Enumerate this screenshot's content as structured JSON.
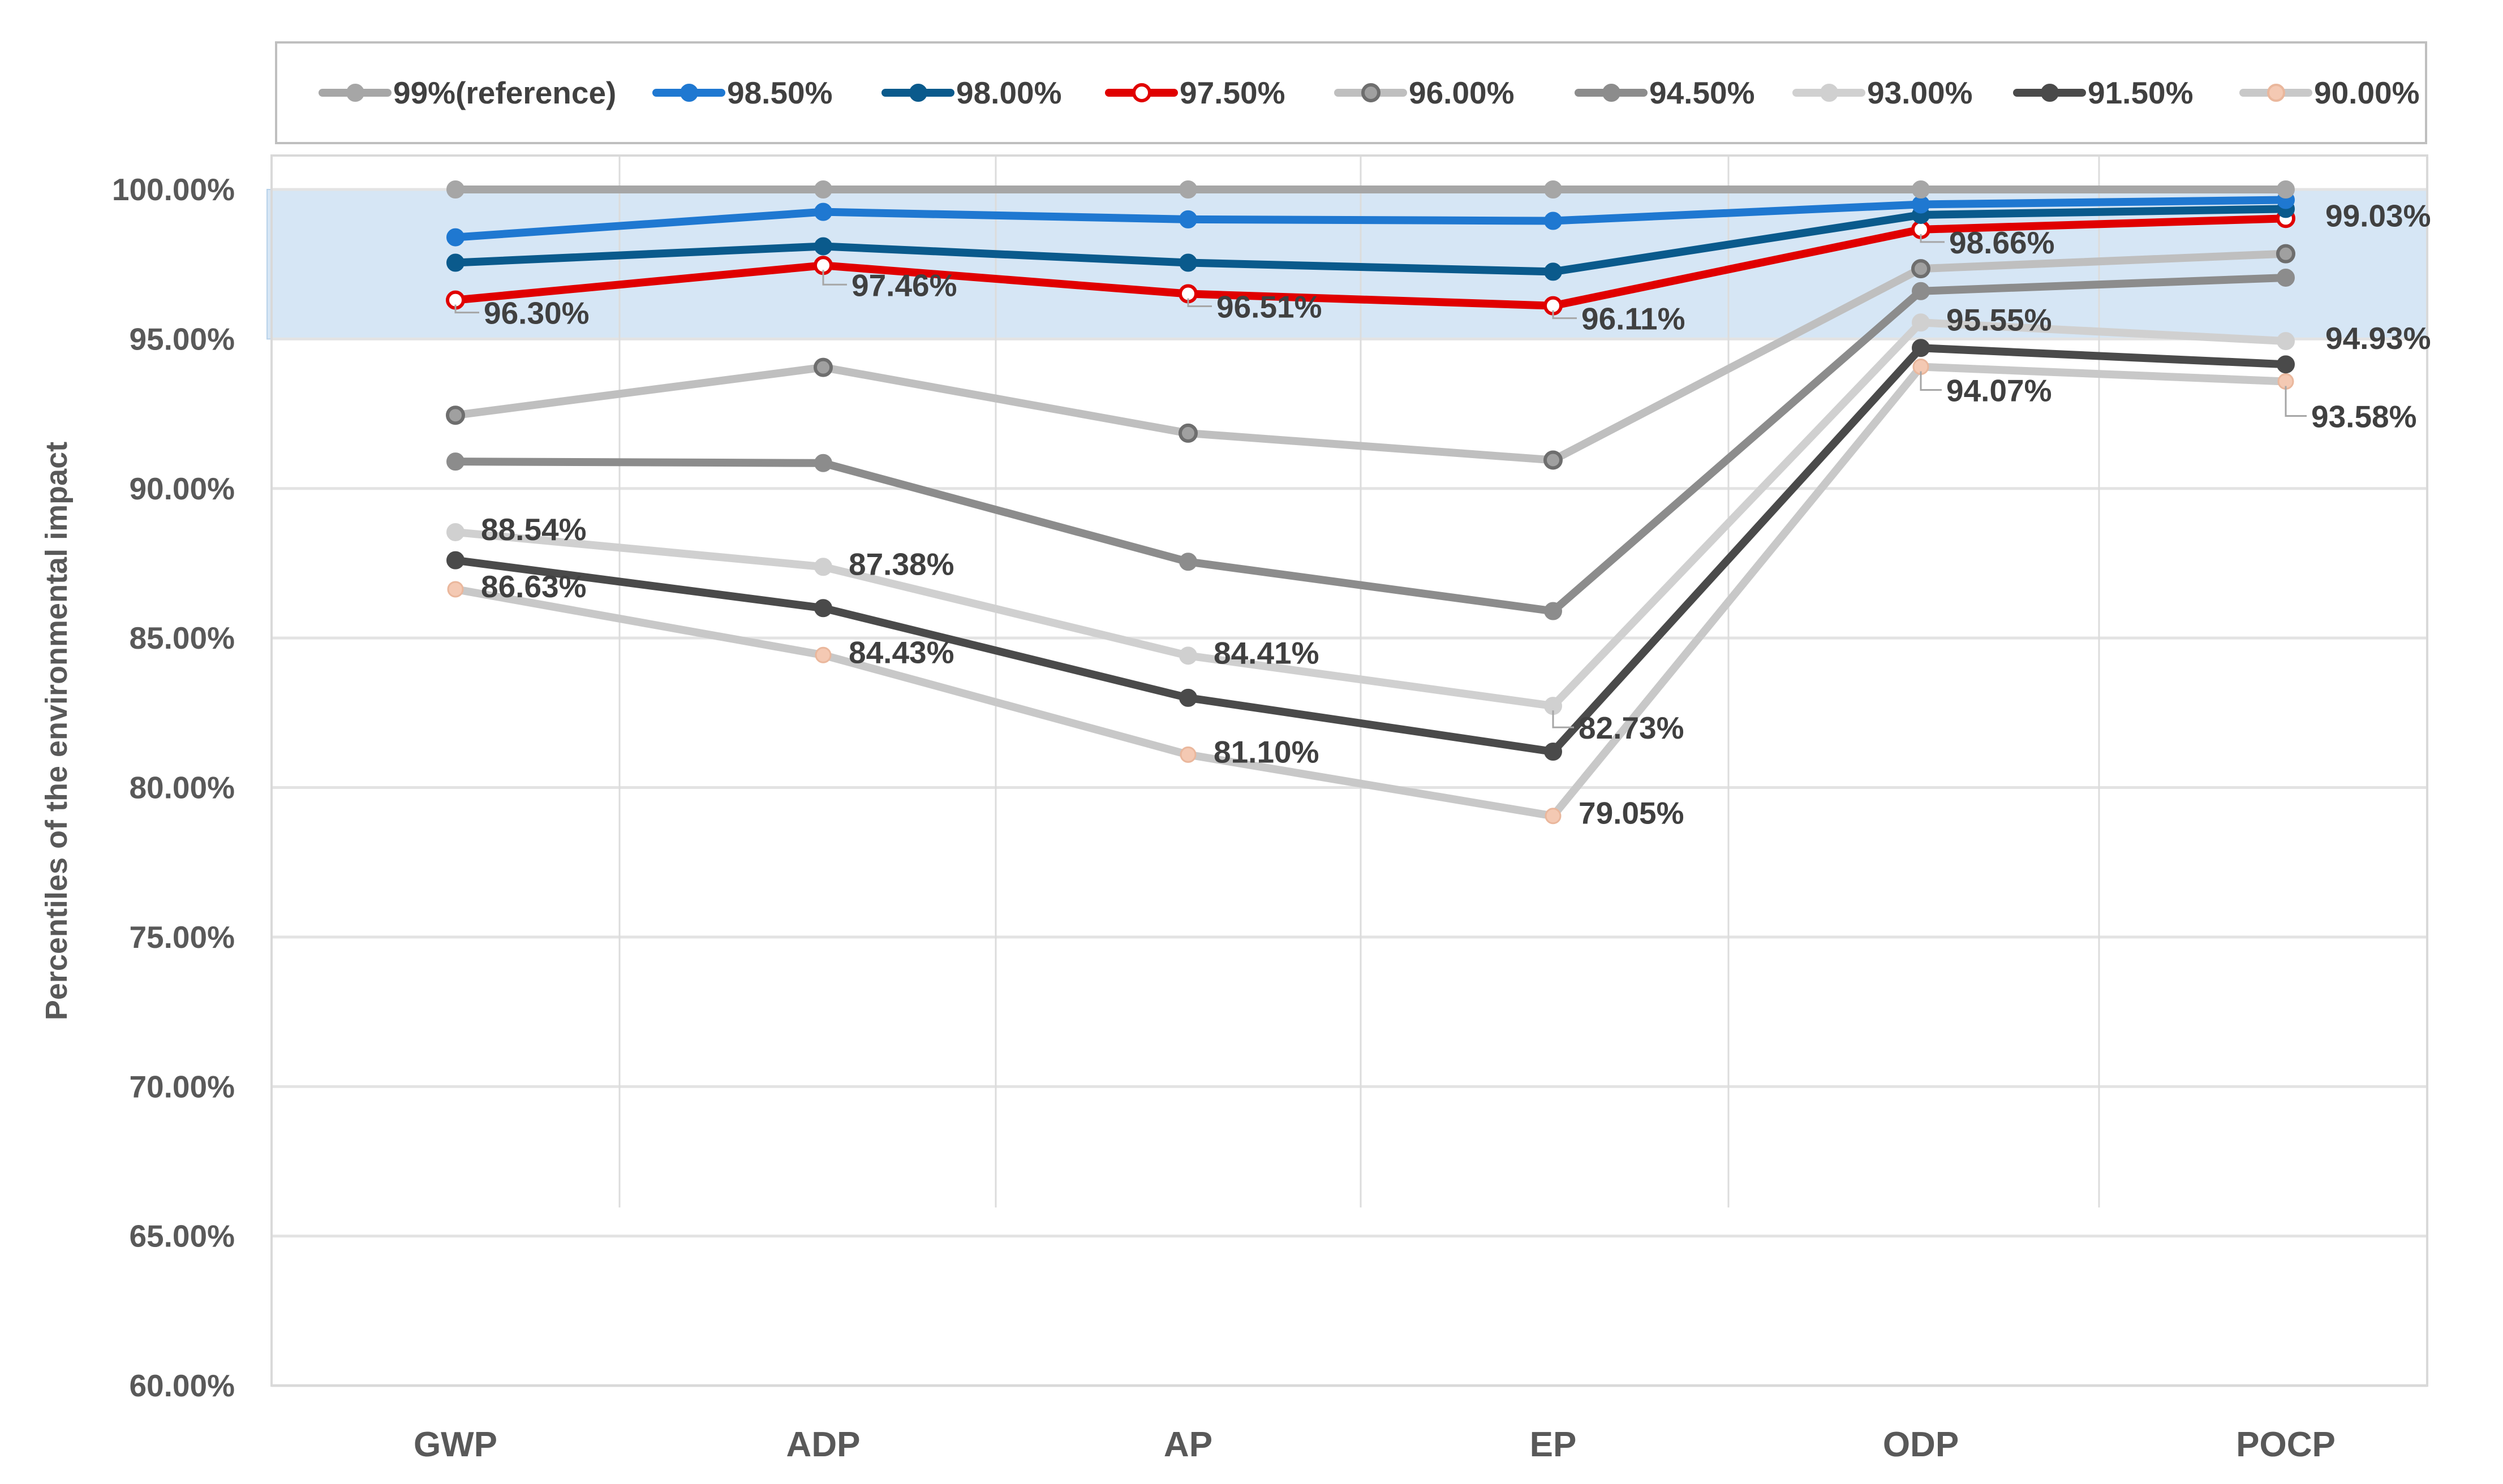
{
  "chart_data": {
    "type": "line",
    "title": "",
    "xlabel": "",
    "ylabel": "Percentiles of the environmental impact",
    "categories": [
      "GWP",
      "ADP",
      "AP",
      "EP",
      "ODP",
      "POCP"
    ],
    "ylim": [
      60,
      100
    ],
    "yticks": [
      60,
      65,
      70,
      75,
      80,
      85,
      90,
      95,
      100
    ],
    "ytick_labels": [
      "60.00%",
      "65.00%",
      "70.00%",
      "75.00%",
      "80.00%",
      "85.00%",
      "90.00%",
      "95.00%",
      "100.00%"
    ],
    "highlight_band": [
      95,
      100
    ],
    "legend_position": "top",
    "grid": true,
    "series": [
      {
        "name": "99%(reference)",
        "color": "#a6a6a6",
        "marker": "filled",
        "values": [
          100,
          100,
          100,
          100,
          100,
          100
        ]
      },
      {
        "name": "98.50%",
        "color": "#1f78d1",
        "marker": "filled",
        "values": [
          98.4,
          99.25,
          99.0,
          98.95,
          99.5,
          99.65
        ]
      },
      {
        "name": "98.00%",
        "color": "#0a5a8c",
        "marker": "filled",
        "values": [
          97.55,
          98.1,
          97.55,
          97.25,
          99.15,
          99.35
        ]
      },
      {
        "name": "97.50%",
        "color": "#e00000",
        "marker": "open",
        "values": [
          96.3,
          97.46,
          96.51,
          96.11,
          98.66,
          99.03
        ]
      },
      {
        "name": "96.00%",
        "color": "#bfbfbf",
        "marker": "open",
        "values": [
          92.45,
          94.05,
          91.85,
          90.95,
          97.35,
          97.85
        ]
      },
      {
        "name": "94.50%",
        "color": "#8c8c8c",
        "marker": "filled",
        "values": [
          90.9,
          90.85,
          87.55,
          85.9,
          96.6,
          97.05
        ]
      },
      {
        "name": "93.00%",
        "color": "#d0d0d0",
        "marker": "filled",
        "values": [
          88.54,
          87.38,
          84.41,
          82.73,
          95.55,
          94.93
        ]
      },
      {
        "name": "91.50%",
        "color": "#4a4a4a",
        "marker": "filled",
        "values": [
          87.6,
          86.0,
          83.0,
          81.2,
          94.7,
          94.15
        ]
      },
      {
        "name": "90.00%",
        "color": "#c8c8c8",
        "marker": "peach",
        "values": [
          86.63,
          84.43,
          81.1,
          79.05,
          94.07,
          93.58
        ]
      }
    ],
    "annotations": [
      {
        "series": "97.50%",
        "category": "GWP",
        "text": "96.30%"
      },
      {
        "series": "97.50%",
        "category": "ADP",
        "text": "97.46%"
      },
      {
        "series": "97.50%",
        "category": "AP",
        "text": "96.51%"
      },
      {
        "series": "97.50%",
        "category": "EP",
        "text": "96.11%"
      },
      {
        "series": "97.50%",
        "category": "ODP",
        "text": "98.66%"
      },
      {
        "series": "97.50%",
        "category": "POCP",
        "text": "99.03%"
      },
      {
        "series": "93.00%",
        "category": "GWP",
        "text": "88.54%"
      },
      {
        "series": "93.00%",
        "category": "ADP",
        "text": "87.38%"
      },
      {
        "series": "93.00%",
        "category": "AP",
        "text": "84.41%"
      },
      {
        "series": "93.00%",
        "category": "EP",
        "text": "82.73%"
      },
      {
        "series": "93.00%",
        "category": "ODP",
        "text": "95.55%"
      },
      {
        "series": "93.00%",
        "category": "POCP",
        "text": "94.93%"
      },
      {
        "series": "90.00%",
        "category": "GWP",
        "text": "86.63%"
      },
      {
        "series": "90.00%",
        "category": "ADP",
        "text": "84.43%"
      },
      {
        "series": "90.00%",
        "category": "AP",
        "text": "81.10%"
      },
      {
        "series": "90.00%",
        "category": "EP",
        "text": "79.05%"
      },
      {
        "series": "90.00%",
        "category": "ODP",
        "text": "94.07%"
      },
      {
        "series": "90.00%",
        "category": "POCP",
        "text": "93.58%"
      }
    ]
  }
}
